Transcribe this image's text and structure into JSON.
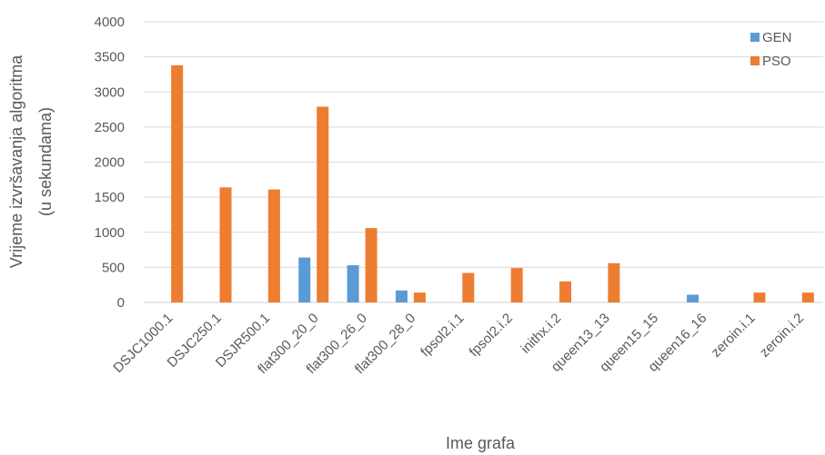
{
  "chart_data": {
    "type": "bar",
    "title": "",
    "xlabel": "Ime grafa",
    "ylabel_lines": [
      "Vrijeme izvršavanja algoritma",
      "(u sekundama)"
    ],
    "ylim": [
      0,
      4000
    ],
    "yticks": [
      0,
      500,
      1000,
      1500,
      2000,
      2500,
      3000,
      3500,
      4000
    ],
    "grid": true,
    "legend_position": "top-right",
    "categories": [
      "DSJC1000.1",
      "DSJC250.1",
      "DSJR500.1",
      "flat300_20_0",
      "flat300_26_0",
      "flat300_28_0",
      "fpsol2.i.1",
      "fpsol2.i.2",
      "inithx.i.2",
      "queen13_13",
      "queen15_15",
      "queen16_16",
      "zeroin.i.1",
      "zeroin.i.2"
    ],
    "series": [
      {
        "name": "GEN",
        "color": "#5b9bd5",
        "values": [
          0,
          0,
          0,
          640,
          530,
          170,
          0,
          0,
          0,
          0,
          0,
          110,
          0,
          0
        ]
      },
      {
        "name": "PSO",
        "color": "#ed7d31",
        "values": [
          3380,
          1640,
          1610,
          2790,
          1060,
          140,
          420,
          490,
          300,
          560,
          0,
          0,
          140,
          140
        ]
      }
    ]
  }
}
